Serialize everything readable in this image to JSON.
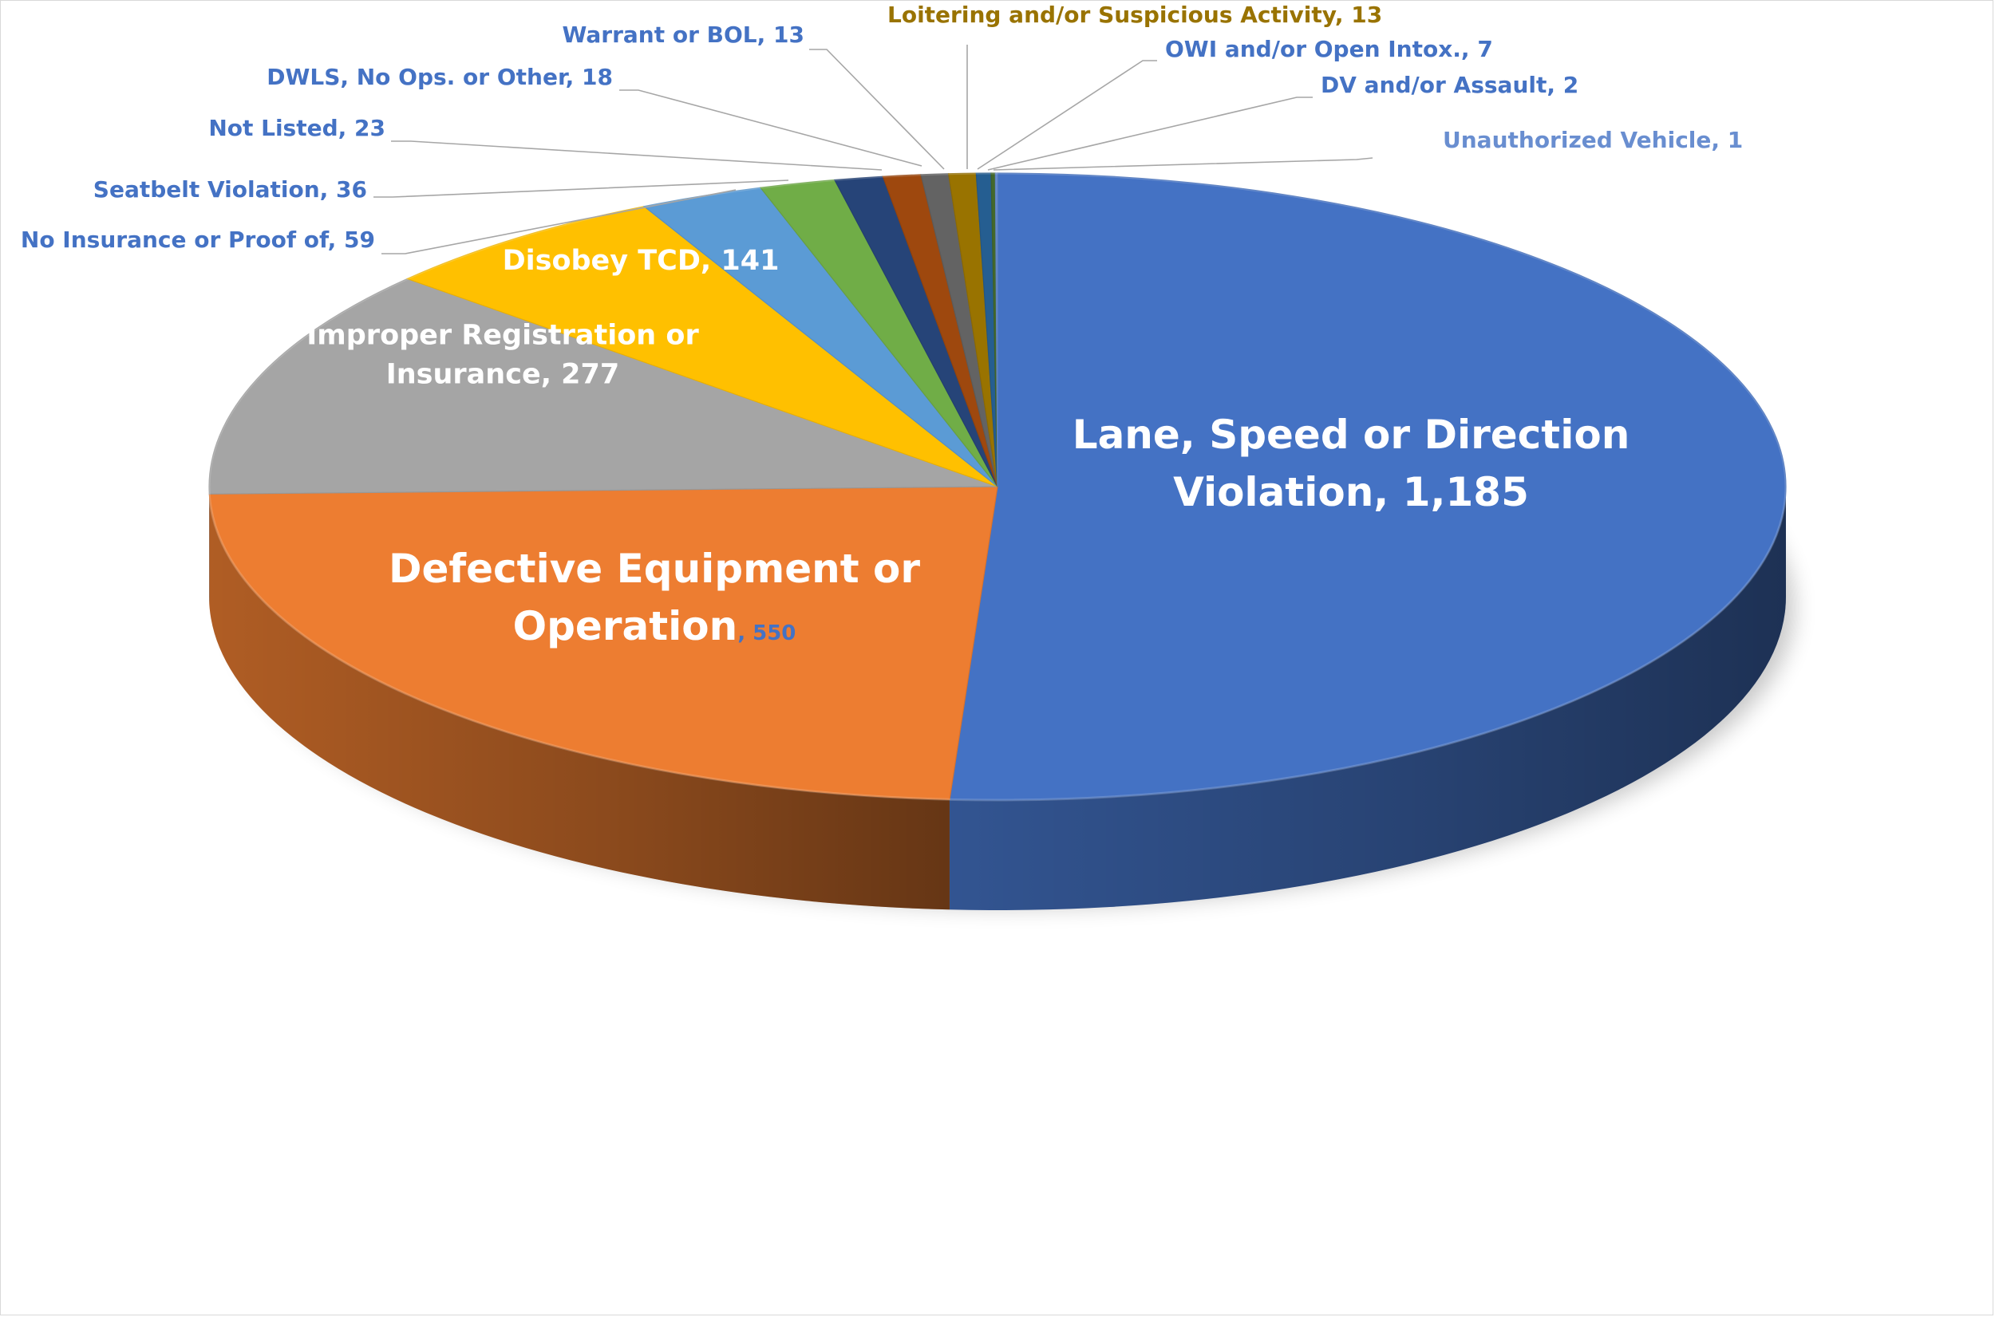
{
  "chart_data": {
    "type": "pie",
    "title": "",
    "units": "count",
    "slices": [
      {
        "label": "Lane, Speed or Direction Violation",
        "value": 1185,
        "display": "Lane, Speed or Direction|Violation, 1,185",
        "color": "#4472C4"
      },
      {
        "label": "Defective Equipment or Operation",
        "value": 550,
        "display": "Defective Equipment or|Operation",
        "value_suffix": ", 550",
        "color": "#ED7D31"
      },
      {
        "label": "Improper Registration or Insurance",
        "value": 277,
        "display": "Improper Registration or|Insurance, 277",
        "color": "#A5A5A5"
      },
      {
        "label": "Disobey TCD",
        "value": 141,
        "display": "Disobey TCD, 141",
        "color": "#FFC000"
      },
      {
        "label": "No Insurance or Proof of",
        "value": 59,
        "display": "No Insurance or Proof of, 59",
        "color": "#5B9BD5"
      },
      {
        "label": "Seatbelt Violation",
        "value": 36,
        "display": "Seatbelt Violation, 36",
        "color": "#70AD47"
      },
      {
        "label": "Not Listed",
        "value": 23,
        "display": "Not Listed, 23",
        "color": "#264478"
      },
      {
        "label": "DWLS, No Ops. or Other",
        "value": 18,
        "display": "DWLS, No Ops. or Other, 18",
        "color": "#9E480E"
      },
      {
        "label": "Warrant or BOL",
        "value": 13,
        "display": "Warrant or BOL, 13",
        "color": "#636363"
      },
      {
        "label": "Loitering and/or Suspicious Activity",
        "value": 13,
        "display": "Loitering and/or Suspicious Activity, 13",
        "color": "#997300"
      },
      {
        "label": "OWI and/or Open Intox.",
        "value": 7,
        "display": "OWI and/or Open Intox., 7",
        "color": "#255E91"
      },
      {
        "label": "DV and/or Assault",
        "value": 2,
        "display": "DV and/or Assault, 2",
        "color": "#43682B"
      },
      {
        "label": "Unauthorized Vehicle",
        "value": 1,
        "display": "Unauthorized Vehicle, 1",
        "color": "#698ED0"
      }
    ],
    "legend": "none",
    "style": "3d-pie",
    "label_colors": {
      "outer_blue": "#4472C4",
      "outer_gold": "#997300",
      "outer_light": "#698ED0",
      "leader": "#a6a6a6"
    }
  }
}
